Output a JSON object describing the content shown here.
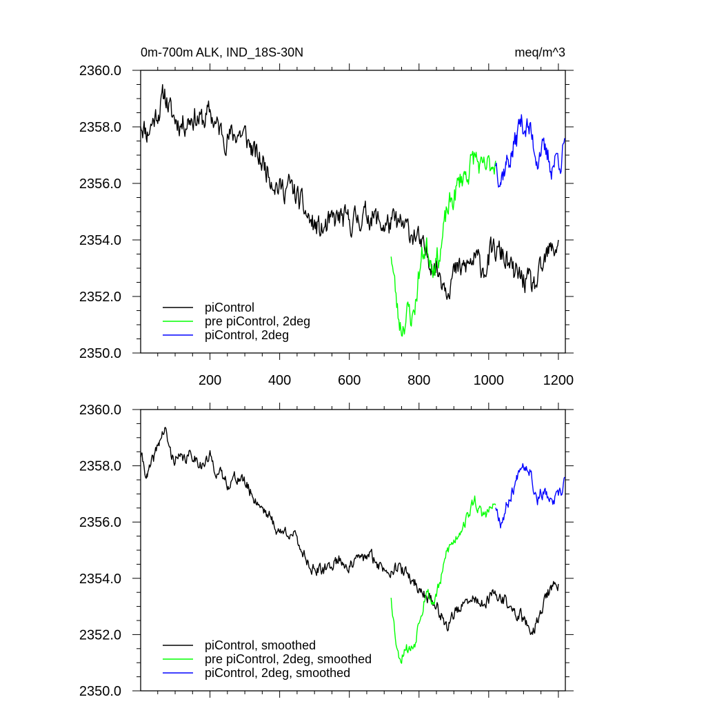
{
  "figure": {
    "title_left": "0m-700m ALK, IND_18S-30N",
    "title_right": "meq/m^3"
  },
  "chart_data": [
    {
      "type": "line",
      "panel": "top",
      "title": "0m-700m ALK, IND_18S-30N",
      "units": "meq/m^3",
      "xlim": [
        1,
        1220
      ],
      "ylim": [
        2350,
        2360
      ],
      "xticks": [
        200,
        400,
        600,
        800,
        1000,
        1200
      ],
      "xtick_labels": [
        "200",
        "400",
        "600",
        "800",
        "1000",
        "1200"
      ],
      "yticks": [
        2350,
        2352,
        2354,
        2356,
        2358,
        2360
      ],
      "ytick_labels": [
        "2350.0",
        "2352.0",
        "2354.0",
        "2356.0",
        "2358.0",
        "2360.0"
      ],
      "legend_position": "bottom-left",
      "series": [
        {
          "name": "piControl",
          "color": "#000000",
          "noise": 0.5,
          "seed": 11,
          "x": [
            1,
            20,
            40,
            60,
            70,
            90,
            120,
            150,
            180,
            200,
            220,
            250,
            280,
            300,
            330,
            360,
            400,
            430,
            460,
            490,
            520,
            540,
            570,
            600,
            630,
            660,
            700,
            730,
            760,
            790,
            810,
            830,
            850,
            870,
            880,
            900,
            930,
            960,
            990,
            1010,
            1040,
            1070,
            1090,
            1110,
            1130,
            1150,
            1170,
            1190,
            1200
          ],
          "y": [
            2358.2,
            2357.8,
            2358.3,
            2358.8,
            2359.2,
            2358.4,
            2358.1,
            2358.4,
            2358.2,
            2358.5,
            2358.0,
            2357.6,
            2357.8,
            2357.7,
            2357.0,
            2356.6,
            2355.8,
            2355.9,
            2355.3,
            2354.6,
            2354.3,
            2354.5,
            2354.8,
            2354.6,
            2354.8,
            2354.9,
            2354.5,
            2354.6,
            2354.4,
            2354.2,
            2353.6,
            2353.4,
            2353.0,
            2352.6,
            2352.4,
            2352.8,
            2353.0,
            2353.3,
            2353.0,
            2353.6,
            2353.5,
            2352.8,
            2352.7,
            2352.5,
            2352.3,
            2352.8,
            2353.5,
            2353.7,
            2354.0
          ]
        },
        {
          "name": "pre piControl, 2deg",
          "color": "#00ff00",
          "noise": 0.5,
          "seed": 23,
          "x": [
            720,
            730,
            740,
            750,
            760,
            770,
            780,
            790,
            800,
            810,
            820,
            840,
            860,
            870,
            880,
            900,
            920,
            940,
            960,
            980,
            1000,
            1020
          ],
          "y": [
            2353.6,
            2352.4,
            2351.3,
            2350.9,
            2351.2,
            2351.5,
            2351.2,
            2351.8,
            2352.8,
            2353.5,
            2353.8,
            2353.2,
            2353.5,
            2354.2,
            2355.0,
            2355.5,
            2356.2,
            2356.4,
            2357.0,
            2356.4,
            2356.6,
            2356.8
          ]
        },
        {
          "name": "piControl, 2deg",
          "color": "#0000ff",
          "noise": 0.5,
          "seed": 37,
          "x": [
            1020,
            1035,
            1050,
            1065,
            1080,
            1090,
            1100,
            1110,
            1120,
            1130,
            1140,
            1150,
            1160,
            1170,
            1180,
            1190,
            1200,
            1210,
            1218
          ],
          "y": [
            2356.8,
            2356.2,
            2356.7,
            2357.0,
            2357.6,
            2358.2,
            2358.1,
            2358.0,
            2357.8,
            2357.3,
            2356.9,
            2357.3,
            2357.0,
            2356.9,
            2356.6,
            2356.8,
            2357.0,
            2356.8,
            2357.6
          ]
        }
      ]
    },
    {
      "type": "line",
      "panel": "bottom",
      "xlim": [
        1,
        1220
      ],
      "ylim": [
        2350,
        2360
      ],
      "xticks": [
        200,
        400,
        600,
        800,
        1000,
        1200
      ],
      "yticks": [
        2350,
        2352,
        2354,
        2356,
        2358,
        2360
      ],
      "ytick_labels": [
        "2350.0",
        "2352.0",
        "2354.0",
        "2356.0",
        "2358.0",
        "2360.0"
      ],
      "legend_position": "bottom-left",
      "series": [
        {
          "name": "piControl, smoothed",
          "color": "#000000",
          "noise": 0.25,
          "seed": 41,
          "x": [
            1,
            20,
            40,
            55,
            70,
            90,
            120,
            150,
            180,
            200,
            220,
            250,
            280,
            300,
            330,
            360,
            400,
            430,
            460,
            490,
            520,
            540,
            570,
            600,
            630,
            660,
            700,
            730,
            760,
            790,
            810,
            830,
            850,
            870,
            880,
            900,
            930,
            960,
            990,
            1010,
            1040,
            1070,
            1090,
            1110,
            1130,
            1150,
            1170,
            1190,
            1200
          ],
          "y": [
            2358.4,
            2357.6,
            2358.3,
            2358.9,
            2359.3,
            2358.3,
            2358.2,
            2358.4,
            2358.0,
            2358.3,
            2357.8,
            2357.4,
            2357.6,
            2357.4,
            2356.8,
            2356.4,
            2355.6,
            2355.7,
            2355.1,
            2354.4,
            2354.2,
            2354.4,
            2354.7,
            2354.4,
            2354.7,
            2354.8,
            2354.3,
            2354.4,
            2354.2,
            2353.8,
            2353.5,
            2353.3,
            2353.0,
            2352.6,
            2352.2,
            2352.8,
            2353.0,
            2353.3,
            2353.0,
            2353.4,
            2353.3,
            2352.8,
            2352.7,
            2352.3,
            2352.2,
            2352.8,
            2353.5,
            2353.7,
            2353.8
          ]
        },
        {
          "name": "pre piControl, 2deg, smoothed",
          "color": "#00ff00",
          "noise": 0.25,
          "seed": 53,
          "x": [
            720,
            730,
            740,
            750,
            760,
            770,
            780,
            790,
            800,
            810,
            820,
            840,
            860,
            870,
            880,
            900,
            920,
            940,
            960,
            980,
            1000,
            1020
          ],
          "y": [
            2353.4,
            2352.2,
            2351.3,
            2351.2,
            2351.6,
            2351.5,
            2351.5,
            2351.8,
            2352.6,
            2353.0,
            2353.6,
            2353.1,
            2353.8,
            2354.3,
            2355.0,
            2355.3,
            2355.8,
            2356.2,
            2356.8,
            2356.2,
            2356.4,
            2356.6
          ]
        },
        {
          "name": "piControl, 2deg, smoothed",
          "color": "#0000ff",
          "noise": 0.25,
          "seed": 67,
          "x": [
            1020,
            1035,
            1050,
            1065,
            1080,
            1090,
            1100,
            1110,
            1120,
            1130,
            1140,
            1150,
            1160,
            1170,
            1180,
            1190,
            1200,
            1210,
            1218
          ],
          "y": [
            2356.6,
            2356.0,
            2356.5,
            2357.0,
            2357.5,
            2358.1,
            2358.1,
            2358.0,
            2357.9,
            2357.2,
            2356.8,
            2357.1,
            2357.0,
            2356.9,
            2356.6,
            2356.8,
            2356.9,
            2357.0,
            2357.6
          ]
        }
      ]
    }
  ]
}
